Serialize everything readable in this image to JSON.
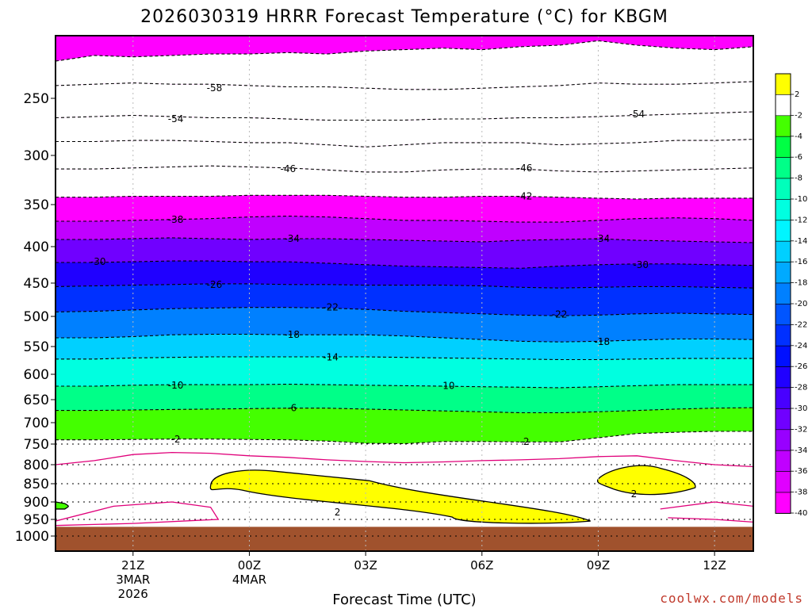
{
  "chart_data": {
    "type": "heatmap",
    "title": "2026030319 HRRR Forecast Temperature (°C) for KBGM",
    "xlabel": "Forecast Time (UTC)",
    "ylabel": "",
    "credit": "coolwx.com/models",
    "x_range_hours": [
      0,
      18
    ],
    "y_scale": "log-pressure",
    "ylim_hpa": [
      1000,
      200
    ],
    "y_ticks": [
      {
        "value": 250,
        "label": "250"
      },
      {
        "value": 300,
        "label": "300"
      },
      {
        "value": 350,
        "label": "350"
      },
      {
        "value": 400,
        "label": "400"
      },
      {
        "value": 450,
        "label": "450"
      },
      {
        "value": 500,
        "label": "500"
      },
      {
        "value": 550,
        "label": "550"
      },
      {
        "value": 600,
        "label": "600"
      },
      {
        "value": 650,
        "label": "650"
      },
      {
        "value": 700,
        "label": "700"
      },
      {
        "value": 750,
        "label": "750"
      },
      {
        "value": 800,
        "label": "800"
      },
      {
        "value": 850,
        "label": "850"
      },
      {
        "value": 900,
        "label": "900"
      },
      {
        "value": 950,
        "label": "950"
      },
      {
        "value": 1000,
        "label": "1000"
      }
    ],
    "x_ticks": [
      {
        "hour": 2,
        "lines": [
          "21Z",
          "3MAR",
          "2026"
        ]
      },
      {
        "hour": 5,
        "lines": [
          "00Z",
          "4MAR"
        ]
      },
      {
        "hour": 8,
        "lines": [
          "03Z"
        ]
      },
      {
        "hour": 11,
        "lines": [
          "06Z"
        ]
      },
      {
        "hour": 14,
        "lines": [
          "09Z"
        ]
      },
      {
        "hour": 17,
        "lines": [
          "12Z"
        ]
      }
    ],
    "ground_level_hpa": 972,
    "isotherms": [
      {
        "temp": -62,
        "p": [
          222,
          218,
          219,
          218,
          217,
          217,
          216,
          217,
          215,
          214,
          213,
          214,
          212,
          211,
          208,
          211,
          213,
          214,
          212
        ]
      },
      {
        "temp": -58,
        "p": [
          240,
          239,
          238,
          239,
          239,
          240,
          241,
          241,
          242,
          243,
          243,
          242,
          241,
          240,
          238,
          239,
          239,
          238,
          237
        ]
      },
      {
        "temp": -54,
        "p": [
          266,
          265,
          264,
          265,
          266,
          266,
          267,
          268,
          268,
          268,
          267,
          267,
          266,
          266,
          265,
          264,
          263,
          262,
          261
        ]
      },
      {
        "temp": -50,
        "p": [
          287,
          287,
          286,
          286,
          287,
          288,
          288,
          290,
          292,
          290,
          288,
          288,
          288,
          290,
          289,
          288,
          286,
          286,
          285
        ]
      },
      {
        "temp": -46,
        "p": [
          313,
          313,
          312,
          311,
          310,
          311,
          312,
          314,
          316,
          316,
          314,
          313,
          313,
          315,
          316,
          315,
          314,
          313,
          312
        ]
      },
      {
        "temp": -42,
        "p": [
          342,
          342,
          341,
          341,
          341,
          340,
          340,
          340,
          341,
          342,
          342,
          341,
          341,
          342,
          343,
          344,
          343,
          343,
          343
        ]
      },
      {
        "temp": -38,
        "p": [
          369,
          369,
          368,
          367,
          366,
          364,
          363,
          364,
          366,
          368,
          368,
          369,
          370,
          370,
          368,
          366,
          365,
          366,
          368
        ]
      },
      {
        "temp": -34,
        "p": [
          391,
          391,
          390,
          389,
          390,
          391,
          390,
          390,
          391,
          392,
          393,
          394,
          392,
          391,
          390,
          392,
          393,
          394,
          395
        ]
      },
      {
        "temp": -30,
        "p": [
          421,
          421,
          420,
          419,
          419,
          420,
          420,
          422,
          424,
          426,
          427,
          428,
          429,
          426,
          424,
          423,
          423,
          424,
          425
        ]
      },
      {
        "temp": -26,
        "p": [
          455,
          454,
          453,
          452,
          451,
          451,
          452,
          452,
          453,
          453,
          453,
          454,
          456,
          457,
          456,
          455,
          455,
          456,
          457
        ]
      },
      {
        "temp": -22,
        "p": [
          493,
          492,
          490,
          488,
          487,
          486,
          486,
          487,
          489,
          492,
          494,
          496,
          498,
          499,
          498,
          496,
          495,
          496,
          497
        ]
      },
      {
        "temp": -18,
        "p": [
          535,
          535,
          533,
          530,
          529,
          529,
          530,
          530,
          530,
          532,
          535,
          538,
          541,
          542,
          541,
          539,
          537,
          537,
          538
        ]
      },
      {
        "temp": -14,
        "p": [
          572,
          572,
          570,
          569,
          568,
          568,
          568,
          568,
          568,
          569,
          570,
          571,
          572,
          573,
          573,
          572,
          571,
          571,
          571
        ]
      },
      {
        "temp": -10,
        "p": [
          623,
          623,
          621,
          620,
          620,
          620,
          619,
          620,
          621,
          622,
          623,
          624,
          625,
          626,
          624,
          622,
          620,
          620,
          620
        ]
      },
      {
        "temp": -6,
        "p": [
          673,
          673,
          672,
          671,
          670,
          669,
          668,
          668,
          670,
          672,
          674,
          676,
          678,
          678,
          676,
          673,
          670,
          668,
          667
        ]
      },
      {
        "temp": -2,
        "p": [
          740,
          740,
          739,
          738,
          738,
          739,
          740,
          743,
          748,
          749,
          744,
          744,
          745,
          745,
          735,
          725,
          722,
          720,
          720
        ]
      }
    ],
    "color_bar": {
      "labels": [
        "2",
        "-2",
        "-4",
        "-6",
        "-8",
        "-10",
        "-12",
        "-14",
        "-16",
        "-18",
        "-20",
        "-22",
        "-24",
        "-26",
        "-28",
        "-30",
        "-32",
        "-34",
        "-36",
        "-38",
        "-40"
      ],
      "colors": [
        "#ffff00",
        "#ffffff",
        "#44ff00",
        "#00ff44",
        "#00ff88",
        "#00ffbb",
        "#00ffe0",
        "#00f5ff",
        "#00d0ff",
        "#00aaff",
        "#0080ff",
        "#0055ff",
        "#0030ff",
        "#0010ff",
        "#2000ff",
        "#4800ff",
        "#7000ff",
        "#9800ff",
        "#c000ff",
        "#e000ff",
        "#ff00ff"
      ]
    },
    "contour_labels": [
      {
        "text": "-58",
        "hour": 4.1,
        "p": 242
      },
      {
        "text": "-54",
        "hour": 3.1,
        "p": 267
      },
      {
        "text": "-54",
        "hour": 15.0,
        "p": 263
      },
      {
        "text": "-46",
        "hour": 6.0,
        "p": 313
      },
      {
        "text": "-46",
        "hour": 12.1,
        "p": 312
      },
      {
        "text": "-42",
        "hour": 12.1,
        "p": 341
      },
      {
        "text": "-38",
        "hour": 3.1,
        "p": 367
      },
      {
        "text": "-34",
        "hour": 6.1,
        "p": 390
      },
      {
        "text": "-34",
        "hour": 14.1,
        "p": 390
      },
      {
        "text": "-30",
        "hour": 1.1,
        "p": 420
      },
      {
        "text": "-30",
        "hour": 15.1,
        "p": 424
      },
      {
        "text": "-26",
        "hour": 4.1,
        "p": 452
      },
      {
        "text": "-22",
        "hour": 7.1,
        "p": 486
      },
      {
        "text": "-22",
        "hour": 13.0,
        "p": 497
      },
      {
        "text": "-18",
        "hour": 6.1,
        "p": 530
      },
      {
        "text": "-18",
        "hour": 14.1,
        "p": 542
      },
      {
        "text": "-14",
        "hour": 7.1,
        "p": 569
      },
      {
        "text": "-10",
        "hour": 3.1,
        "p": 621
      },
      {
        "text": "-10",
        "hour": 10.1,
        "p": 622
      },
      {
        "text": "-6",
        "hour": 6.1,
        "p": 668
      },
      {
        "text": "-2",
        "hour": 3.1,
        "p": 739
      },
      {
        "text": "-2",
        "hour": 12.1,
        "p": 744
      },
      {
        "text": "2",
        "hour": 14.9,
        "p": 872
      }
    ],
    "warm_regions": [
      {
        "temp_range": "> 2",
        "hour": [
          4.0,
          13.8
        ],
        "p": [
          825,
          962
        ],
        "label": "2"
      },
      {
        "temp_range": "> 2",
        "hour": [
          14.0,
          16.5
        ],
        "p": [
          798,
          878
        ],
        "label": "2"
      },
      {
        "temp_range": "-4 to -2",
        "hour": [
          0.0,
          0.2
        ],
        "p": [
          900,
          920
        ],
        "label": ""
      }
    ]
  }
}
